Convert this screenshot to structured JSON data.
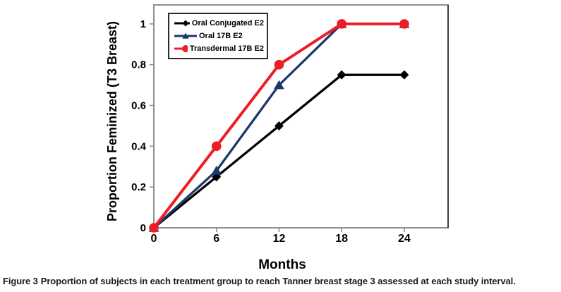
{
  "figure": {
    "caption_prefix": "Figure 3",
    "caption_text": "Proportion of subjects in each treatment group to reach Tanner breast stage 3 assessed at each study interval."
  },
  "chart_data": {
    "type": "line",
    "title": "",
    "xlabel": "Months",
    "ylabel": "Proportion Feminized (T3 Breast)",
    "x": [
      0,
      6,
      12,
      18,
      24
    ],
    "xlim": [
      0,
      28.2
    ],
    "ylim": [
      0,
      1.093
    ],
    "grid": false,
    "legend_position": "top-left-inside",
    "xticks": [
      {
        "v": 0,
        "label": "0"
      },
      {
        "v": 6,
        "label": "6"
      },
      {
        "v": 12,
        "label": "12"
      },
      {
        "v": 18,
        "label": "18"
      },
      {
        "v": 24,
        "label": "24"
      }
    ],
    "yticks": [
      {
        "v": 0,
        "label": "0"
      },
      {
        "v": 0.2,
        "label": "0.2"
      },
      {
        "v": 0.4,
        "label": "0.4"
      },
      {
        "v": 0.6,
        "label": "0.6"
      },
      {
        "v": 0.8,
        "label": "0.8"
      },
      {
        "v": 1,
        "label": "1"
      }
    ],
    "series": [
      {
        "name": "Oral Conjugated E2",
        "color": "#000000",
        "marker": "diamond",
        "values": [
          0,
          0.25,
          0.5,
          0.75,
          0.75
        ]
      },
      {
        "name": "Oral 17B E2",
        "color": "#1B3869",
        "marker": "triangle",
        "values": [
          0,
          0.28,
          0.7,
          1,
          1
        ]
      },
      {
        "name": "Transdermal 17B E2",
        "color": "#EE1C25",
        "marker": "circle",
        "values": [
          0,
          0.4,
          0.8,
          1,
          1
        ]
      }
    ]
  }
}
